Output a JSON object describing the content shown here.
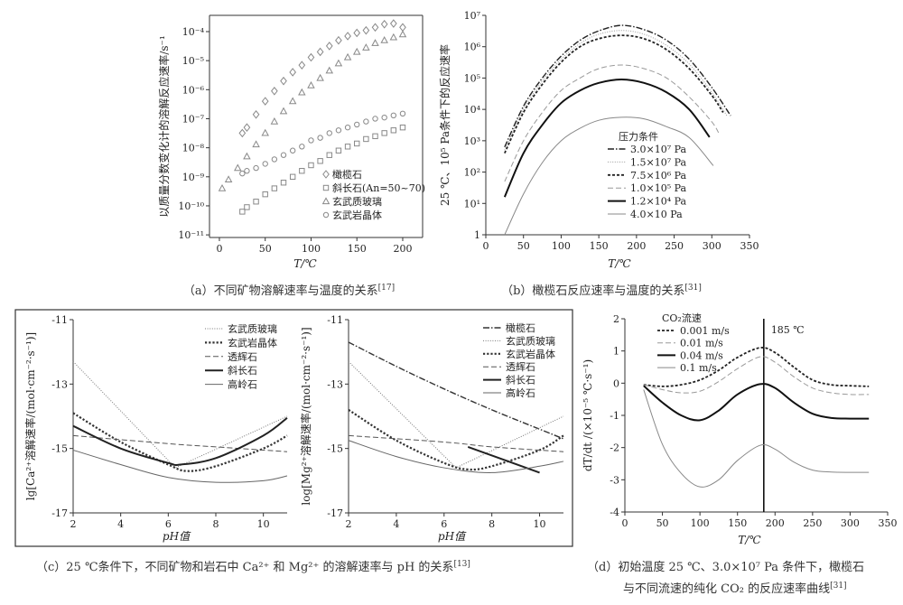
{
  "chart_data": [
    {
      "id": "a",
      "type": "scatter",
      "caption": "（a）不同矿物溶解速率与温度的关系",
      "caption_ref": "[17]",
      "xlabel": "T/℃",
      "ylabel": "以质量分数变化计的溶解反应速率/s⁻¹",
      "yscale": "log",
      "xticks": [
        0,
        50,
        100,
        150,
        200
      ],
      "yticks": [
        1e-11,
        1e-10,
        1e-09,
        1e-08,
        1e-07,
        1e-06,
        1e-05,
        0.0001
      ],
      "ytick_labels": [
        "10⁻¹¹",
        "10⁻¹⁰",
        "10⁻⁹",
        "10⁻⁸",
        "10⁻⁷",
        "10⁻⁶",
        "10⁻⁵",
        "10⁻⁴"
      ],
      "legend_placement": "bottom-right",
      "series": [
        {
          "name": "橄榄石",
          "marker": "diamond",
          "color": "#888888",
          "x": [
            25,
            30,
            40,
            50,
            60,
            70,
            80,
            90,
            100,
            110,
            120,
            130,
            140,
            150,
            160,
            170,
            180,
            190,
            200
          ],
          "y": [
            3.2e-08,
            5e-08,
            1.4e-07,
            4e-07,
            9e-07,
            2e-06,
            4e-06,
            7e-06,
            1.3e-05,
            2e-05,
            3.2e-05,
            5e-05,
            7e-05,
            9e-05,
            0.00011,
            0.00014,
            0.00018,
            0.00019,
            0.00014
          ]
        },
        {
          "name": "斜长石(An=50~70)",
          "marker": "square",
          "color": "#888888",
          "x": [
            25,
            30,
            40,
            50,
            60,
            70,
            80,
            90,
            100,
            110,
            120,
            130,
            140,
            150,
            160,
            170,
            180,
            190,
            200
          ],
          "y": [
            6.3e-11,
            9e-11,
            1.4e-10,
            2.5e-10,
            4e-10,
            6.3e-10,
            1e-09,
            1.6e-09,
            2.5e-09,
            3.5e-09,
            5.6e-09,
            8e-09,
            1.1e-08,
            1.4e-08,
            2e-08,
            2.5e-08,
            3.2e-08,
            4e-08,
            5e-08
          ]
        },
        {
          "name": "玄武质玻璃",
          "marker": "triangle",
          "color": "#888888",
          "x": [
            3,
            10,
            20,
            30,
            40,
            50,
            60,
            70,
            80,
            90,
            100,
            110,
            120,
            130,
            140,
            150,
            160,
            170,
            180,
            190,
            200
          ],
          "y": [
            4e-10,
            8e-10,
            2e-09,
            5e-09,
            1.3e-08,
            3.2e-08,
            8e-08,
            1.8e-07,
            4e-07,
            8e-07,
            1.4e-06,
            2.5e-06,
            4.5e-06,
            8e-06,
            1.3e-05,
            2e-05,
            2.8e-05,
            4e-05,
            5e-05,
            6.3e-05,
            8e-05
          ]
        },
        {
          "name": "玄武岩晶体",
          "marker": "circle",
          "color": "#888888",
          "x": [
            25,
            30,
            40,
            50,
            60,
            70,
            80,
            90,
            100,
            110,
            120,
            130,
            140,
            150,
            160,
            170,
            180,
            190,
            200
          ],
          "y": [
            1.3e-09,
            1.6e-09,
            2e-09,
            2.8e-09,
            4e-09,
            5.6e-09,
            8e-09,
            1.1e-08,
            1.8e-08,
            2.2e-08,
            3.2e-08,
            4e-08,
            5e-08,
            6.3e-08,
            8e-08,
            1e-07,
            1.1e-07,
            1.3e-07,
            1.5e-07
          ]
        }
      ]
    },
    {
      "id": "b",
      "type": "line",
      "caption": "（b）橄榄石反应速率与温度的关系",
      "caption_ref": "[31]",
      "xlabel": "T/℃",
      "ylabel": "25 ℃、10⁵ Pa条件下的反应速率",
      "yscale": "log",
      "xticks": [
        0,
        50,
        100,
        150,
        200,
        250,
        300,
        350
      ],
      "yticks": [
        1,
        10,
        100,
        1000,
        10000,
        100000,
        1000000,
        10000000
      ],
      "ytick_labels": [
        "1",
        "10¹",
        "10²",
        "10³",
        "10⁴",
        "10⁵",
        "10⁶",
        "10⁷"
      ],
      "legend_title": "压力条件",
      "legend_placement": "bottom-center",
      "series": [
        {
          "name": "3.0×10⁷ Pa",
          "style": "dashdot",
          "color": "#222222",
          "x": [
            25,
            50,
            75,
            100,
            125,
            150,
            180,
            210,
            240,
            270,
            300,
            325
          ],
          "y": [
            630,
            12600,
            100000,
            500000,
            1600000,
            3200000,
            4800000,
            3500000,
            1600000,
            400000,
            50000,
            6300
          ]
        },
        {
          "name": "1.5×10⁷ Pa",
          "style": "dotted",
          "color": "#999999",
          "x": [
            25,
            50,
            75,
            100,
            125,
            150,
            180,
            210,
            240,
            270,
            300,
            320
          ],
          "y": [
            500,
            10000,
            80000,
            400000,
            1260000,
            2500000,
            3300000,
            2500000,
            1100000,
            280000,
            35000,
            6300
          ]
        },
        {
          "name": "7.5×10⁶ Pa",
          "style": "shortdash",
          "color": "#222222",
          "x": [
            25,
            50,
            75,
            100,
            125,
            150,
            180,
            210,
            240,
            270,
            300,
            315
          ],
          "y": [
            400,
            8000,
            63000,
            320000,
            1000000,
            1800000,
            2300000,
            1800000,
            800000,
            200000,
            28000,
            8000
          ]
        },
        {
          "name": "1.0×10⁵ Pa",
          "style": "longdash",
          "color": "#999999",
          "x": [
            25,
            50,
            75,
            100,
            125,
            150,
            180,
            210,
            240,
            270,
            300,
            310
          ],
          "y": [
            50,
            1000,
            8000,
            40000,
            100000,
            200000,
            260000,
            200000,
            100000,
            25000,
            4000,
            1600
          ]
        },
        {
          "name": "1.2×10⁴ Pa",
          "style": "solid-thick",
          "color": "#111111",
          "x": [
            25,
            50,
            75,
            100,
            125,
            150,
            180,
            210,
            240,
            270,
            297
          ],
          "y": [
            16,
            400,
            3200,
            16000,
            40000,
            70000,
            90000,
            70000,
            35000,
            10000,
            1300
          ]
        },
        {
          "name": "4.0×10 Pa",
          "style": "solid",
          "color": "#888888",
          "x": [
            25,
            50,
            75,
            100,
            125,
            150,
            180,
            210,
            240,
            270,
            302
          ],
          "y": [
            1,
            20,
            200,
            1000,
            2500,
            4500,
            5600,
            5000,
            2800,
            1260,
            160
          ]
        }
      ]
    },
    {
      "id": "c-left",
      "type": "line",
      "xlabel": "pH值",
      "ylabel": "lg[Ca²⁺溶解速率/(mol·cm⁻²·s⁻¹)]",
      "xticks": [
        2,
        4,
        6,
        8,
        10
      ],
      "yticks": [
        -17,
        -15,
        -13,
        -11
      ],
      "legend_placement": "top-right",
      "series": [
        {
          "name": "玄武质玻璃",
          "style": "dotted",
          "color": "#777777",
          "straight": true,
          "x": [
            2,
            6.3,
            11
          ],
          "y": [
            -12.3,
            -15.6,
            -14.0
          ]
        },
        {
          "name": "玄武岩晶体",
          "style": "dotted-thick",
          "color": "#333333",
          "x": [
            2,
            4,
            6,
            6.8,
            8,
            10,
            11
          ],
          "y": [
            -13.9,
            -14.8,
            -15.5,
            -15.7,
            -15.55,
            -15.0,
            -14.6
          ]
        },
        {
          "name": "透辉石",
          "style": "longdash",
          "color": "#555555",
          "x": [
            2,
            6,
            8,
            11
          ],
          "y": [
            -14.6,
            -14.85,
            -14.95,
            -15.1
          ]
        },
        {
          "name": "斜长石",
          "style": "solid-thick",
          "color": "#222222",
          "x": [
            2,
            4,
            6,
            6.5,
            8,
            10,
            11
          ],
          "y": [
            -14.3,
            -15.0,
            -15.45,
            -15.5,
            -15.3,
            -14.6,
            -14.05
          ]
        },
        {
          "name": "高岭石",
          "style": "solid",
          "color": "#666666",
          "x": [
            2,
            4,
            6,
            8,
            10,
            11
          ],
          "y": [
            -15.05,
            -15.5,
            -15.9,
            -16.05,
            -16.0,
            -15.85
          ]
        }
      ]
    },
    {
      "id": "c-right",
      "type": "line",
      "xlabel": "pH值",
      "ylabel": "log[Mg²⁺溶解速率/(mol·cm⁻²·s⁻¹)]",
      "xticks": [
        2,
        4,
        6,
        8,
        10
      ],
      "yticks": [
        -17,
        -15,
        -13,
        -11
      ],
      "legend_placement": "top-right",
      "series": [
        {
          "name": "橄榄石",
          "style": "dashdot",
          "color": "#333333",
          "x": [
            2,
            4,
            6,
            8,
            10,
            11
          ],
          "y": [
            -11.7,
            -12.45,
            -13.15,
            -13.8,
            -14.4,
            -14.7
          ]
        },
        {
          "name": "玄武质玻璃",
          "style": "dotted",
          "color": "#777777",
          "straight": true,
          "x": [
            2,
            6.5,
            11
          ],
          "y": [
            -12.3,
            -15.6,
            -14.0
          ]
        },
        {
          "name": "玄武岩晶体",
          "style": "dotted-thick",
          "color": "#333333",
          "x": [
            2,
            4,
            6,
            7,
            8,
            10,
            11
          ],
          "y": [
            -13.8,
            -14.75,
            -15.45,
            -15.65,
            -15.55,
            -15.05,
            -14.6
          ]
        },
        {
          "name": "透辉石",
          "style": "longdash",
          "color": "#555555",
          "x": [
            2,
            6,
            8,
            11
          ],
          "y": [
            -14.6,
            -14.8,
            -14.95,
            -15.1
          ]
        },
        {
          "name": "斜长石",
          "style": "solid-thick",
          "color": "#222222",
          "straight": true,
          "x": [
            7,
            10
          ],
          "y": [
            -14.95,
            -15.75
          ]
        },
        {
          "name": "高岭石",
          "style": "solid",
          "color": "#666666",
          "x": [
            2,
            4,
            6,
            8,
            10,
            11
          ],
          "y": [
            -14.75,
            -15.25,
            -15.6,
            -15.75,
            -15.55,
            -15.4
          ]
        }
      ]
    },
    {
      "id": "d",
      "type": "line",
      "caption_line1": "（d）初始温度 25 ℃、3.0×10⁷ Pa 条件下，橄榄石",
      "caption_line2": "与不同流速的纯化 CO₂ 的反应速率曲线",
      "caption_ref": "[31]",
      "xlabel": "T/℃",
      "ylabel": "dT/dt /(×10⁻⁵ ℃·s⁻¹)",
      "xticks": [
        0,
        50,
        100,
        150,
        200,
        250,
        300,
        350
      ],
      "yticks": [
        -4,
        -3,
        -2,
        -1,
        0,
        1,
        2
      ],
      "legend_title": "CO₂流速",
      "legend_placement": "top-left",
      "annotation": {
        "label": "185 ℃",
        "x": 185
      },
      "series": [
        {
          "name": "0.001 m/s",
          "style": "shortdash",
          "color": "#222222",
          "x": [
            25,
            50,
            75,
            100,
            125,
            150,
            180,
            200,
            225,
            250,
            275,
            300,
            325
          ],
          "y": [
            -0.05,
            -0.1,
            -0.05,
            0.1,
            0.4,
            0.8,
            1.1,
            0.95,
            0.5,
            0.1,
            -0.05,
            -0.08,
            -0.1
          ]
        },
        {
          "name": "0.01 m/s",
          "style": "longdash",
          "color": "#999999",
          "x": [
            25,
            50,
            75,
            100,
            125,
            150,
            180,
            200,
            225,
            250,
            275,
            300,
            325
          ],
          "y": [
            -0.05,
            -0.2,
            -0.3,
            -0.25,
            0.05,
            0.45,
            0.82,
            0.65,
            0.2,
            -0.15,
            -0.3,
            -0.35,
            -0.35
          ]
        },
        {
          "name": "0.04 m/s",
          "style": "solid-thick",
          "color": "#111111",
          "x": [
            25,
            50,
            75,
            100,
            125,
            150,
            180,
            200,
            225,
            250,
            275,
            300,
            325
          ],
          "y": [
            -0.08,
            -0.6,
            -1.0,
            -1.15,
            -0.85,
            -0.35,
            -0.03,
            -0.15,
            -0.6,
            -0.95,
            -1.08,
            -1.1,
            -1.1
          ]
        },
        {
          "name": "0.1 m/s",
          "style": "solid",
          "color": "#888888",
          "x": [
            25,
            50,
            75,
            100,
            125,
            150,
            180,
            200,
            225,
            250,
            275,
            300,
            325
          ],
          "y": [
            -0.2,
            -1.9,
            -2.8,
            -3.22,
            -3.0,
            -2.4,
            -1.93,
            -2.05,
            -2.45,
            -2.7,
            -2.76,
            -2.77,
            -2.77
          ]
        }
      ]
    }
  ],
  "figure_c_caption": "（c）25 ℃条件下，不同矿物和岩石中 Ca²⁺ 和 Mg²⁺ 的溶解速率与 pH 的关系",
  "figure_c_caption_ref": "[13]"
}
